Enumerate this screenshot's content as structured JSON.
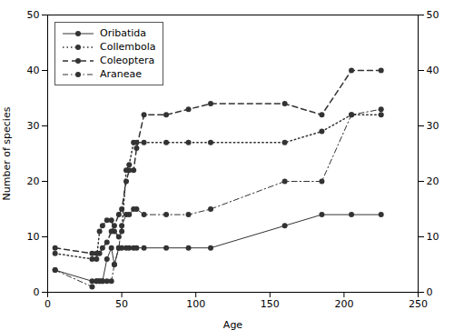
{
  "chart_data": {
    "type": "line",
    "xlabel": "Age",
    "ylabel": "Number of species",
    "x": [
      5,
      30,
      33,
      35,
      37,
      40,
      43,
      45,
      48,
      50,
      53,
      55,
      58,
      60,
      65,
      80,
      95,
      110,
      160,
      185,
      205,
      225
    ],
    "series": [
      {
        "name": "Oribatida",
        "color": "#333333",
        "line_style": "solid",
        "marker": "circle",
        "values": [
          4,
          2,
          2,
          2,
          2,
          6,
          8,
          5,
          8,
          8,
          8,
          8,
          8,
          8,
          8,
          8,
          8,
          8,
          12,
          14,
          14,
          14
        ]
      },
      {
        "name": "Collembola",
        "color": "#333333",
        "line_style": "dotted",
        "marker": "circle",
        "values": [
          7,
          6,
          6,
          11,
          12,
          13,
          13,
          11,
          10,
          11,
          22,
          23,
          27,
          27,
          27,
          27,
          27,
          27,
          27,
          29,
          32,
          32
        ]
      },
      {
        "name": "Coleoptera",
        "color": "#333333",
        "line_style": "dashed",
        "marker": "circle",
        "values": [
          8,
          7,
          7,
          7,
          8,
          9,
          11,
          12,
          14,
          15,
          20,
          22,
          22,
          26,
          32,
          32,
          33,
          34,
          34,
          32,
          40,
          40
        ]
      },
      {
        "name": "Araneae",
        "color": "#333333",
        "line_style": "dashdot",
        "marker": "circle",
        "values": [
          4,
          1,
          2,
          2,
          2,
          2,
          2,
          5,
          8,
          12,
          14,
          14,
          15,
          15,
          14,
          14,
          14,
          15,
          20,
          20,
          32,
          33
        ]
      }
    ],
    "xlim": [
      0,
      250
    ],
    "ylim": [
      0,
      50
    ],
    "xticks": [
      0,
      50,
      100,
      150,
      200,
      250
    ],
    "yticks": [
      0,
      10,
      20,
      30,
      40,
      50
    ],
    "y2lim": [
      0,
      50
    ],
    "y2ticks": [
      0,
      10,
      20,
      30,
      40,
      50
    ],
    "legend": "upper left",
    "grid": false
  }
}
